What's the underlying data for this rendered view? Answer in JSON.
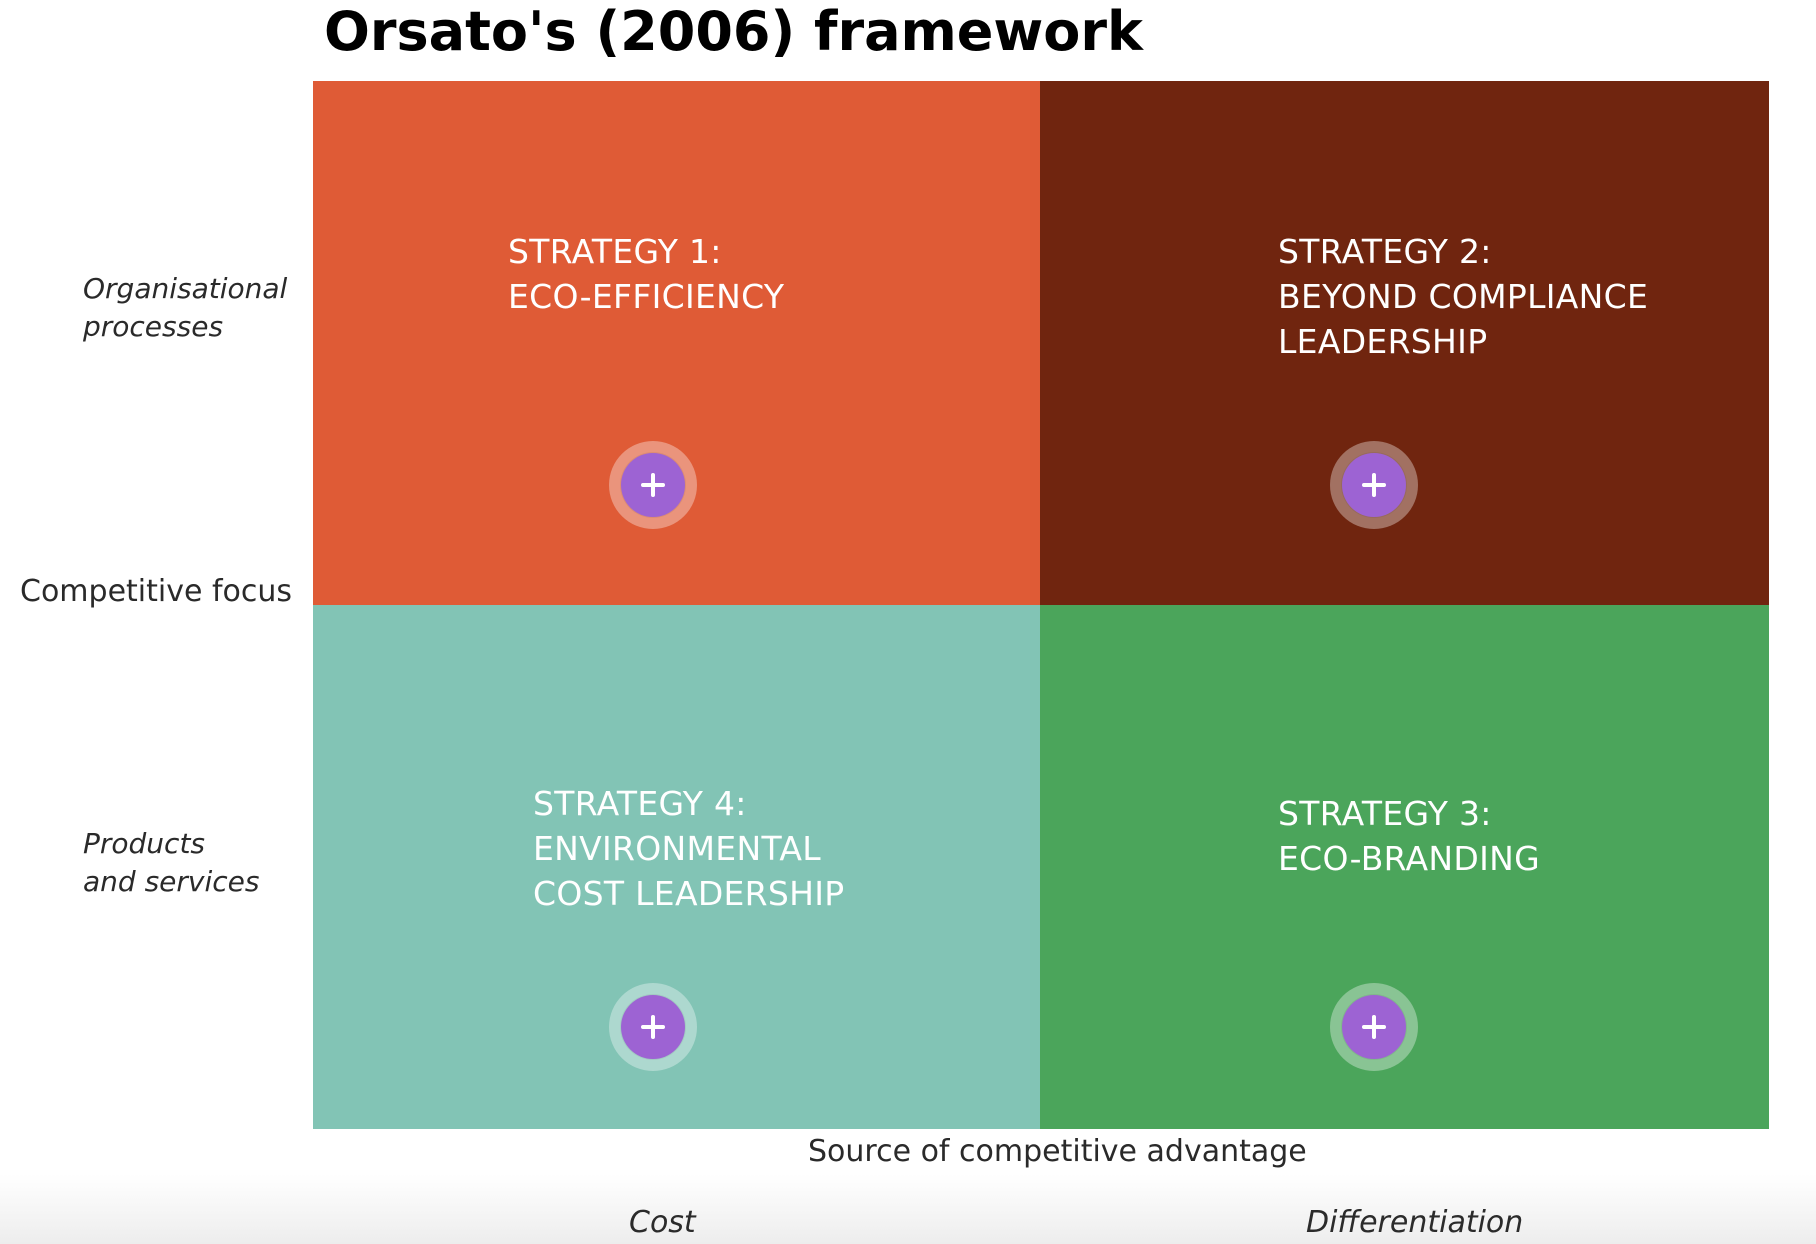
{
  "title": "Orsato's (2006) framework",
  "colors": {
    "strategy_1": "#DF5B36",
    "strategy_2": "#70250F",
    "strategy_3": "#4BA55B",
    "strategy_4": "#82C4B5",
    "plus_button": "#9D63D3"
  },
  "labels": {
    "competitive_focus": "Competitive focus",
    "source_of_advantage": "Source of competitive advantage",
    "organisational_processes": [
      "Organisational",
      "processes"
    ],
    "products_and_services": [
      "Products",
      "and services"
    ],
    "cost": "Cost",
    "differentiation": "Differentiation"
  },
  "quadrants": {
    "top_left": {
      "lines": [
        "STRATEGY 1:",
        "ECO-EFFICIENCY"
      ],
      "button_icon": "plus-icon"
    },
    "top_right": {
      "lines": [
        "STRATEGY 2:",
        "BEYOND COMPLIANCE",
        "LEADERSHIP"
      ],
      "button_icon": "plus-icon"
    },
    "bottom_left": {
      "lines": [
        "STRATEGY 4:",
        "ENVIRONMENTAL",
        "COST LEADERSHIP"
      ],
      "button_icon": "plus-icon"
    },
    "bottom_right": {
      "lines": [
        "STRATEGY 3:",
        "ECO-BRANDING"
      ],
      "button_icon": "plus-icon"
    }
  }
}
